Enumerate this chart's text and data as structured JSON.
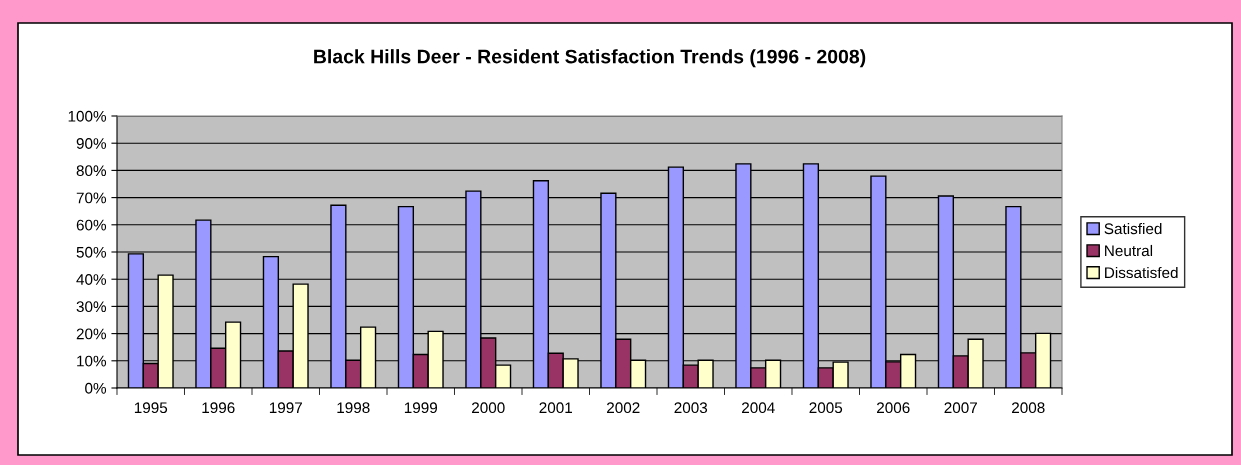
{
  "chart_data": {
    "type": "bar",
    "title": "Black Hills Deer - Resident Satisfaction Trends (1996 - 2008)",
    "categories": [
      "1995",
      "1996",
      "1997",
      "1998",
      "1999",
      "2000",
      "2001",
      "2002",
      "2003",
      "2004",
      "2005",
      "2006",
      "2007",
      "2008"
    ],
    "series": [
      {
        "name": "Satisfied",
        "color": "#9999ff",
        "values": [
          49.3,
          61.7,
          48.3,
          67.2,
          66.7,
          72.4,
          76.2,
          71.6,
          81.2,
          82.4,
          82.4,
          77.9,
          70.6,
          66.7
        ]
      },
      {
        "name": "Neutral",
        "color": "#993366",
        "values": [
          9.0,
          14.6,
          13.6,
          10.2,
          12.3,
          18.4,
          12.8,
          17.9,
          8.4,
          7.4,
          7.4,
          9.6,
          11.8,
          12.9
        ]
      },
      {
        "name": "Dissatisfed",
        "color": "#ffffcc",
        "values": [
          41.5,
          24.2,
          38.2,
          22.4,
          20.8,
          8.4,
          10.7,
          10.2,
          10.2,
          10.2,
          9.5,
          12.3,
          17.9,
          20.1
        ]
      }
    ],
    "ylim": [
      0,
      100
    ],
    "yticks": [
      {
        "value": 0,
        "label": "0%"
      },
      {
        "value": 10,
        "label": "10%"
      },
      {
        "value": 20,
        "label": "20%"
      },
      {
        "value": 30,
        "label": "30%"
      },
      {
        "value": 40,
        "label": "40%"
      },
      {
        "value": 50,
        "label": "50%"
      },
      {
        "value": 60,
        "label": "60%"
      },
      {
        "value": 70,
        "label": "70%"
      },
      {
        "value": 80,
        "label": "80%"
      },
      {
        "value": 90,
        "label": "90%"
      },
      {
        "value": 100,
        "label": "100%"
      }
    ],
    "grid": "y",
    "legend": "right"
  }
}
